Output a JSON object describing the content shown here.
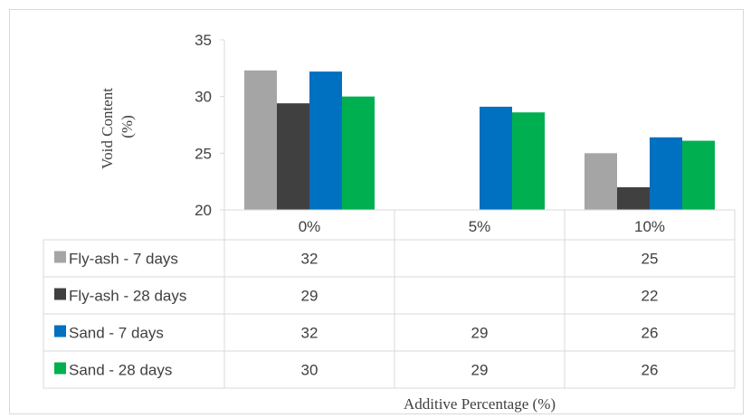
{
  "chart_data": {
    "type": "bar",
    "title": "",
    "xlabel": "Additive Percentage (%)",
    "ylabel": "Void Content (%)",
    "ylabel_lines": [
      "Void Content",
      "(%)"
    ],
    "ylim": [
      20,
      35
    ],
    "yticks": [
      20,
      25,
      30,
      35
    ],
    "ytick_labels": [
      "20",
      "25",
      "30",
      "35"
    ],
    "grid": false,
    "legend": "data-table-left",
    "categories": [
      "0%",
      "5%",
      "10%"
    ],
    "series": [
      {
        "name": "Fly-ash - 7 days",
        "color": "#a5a5a5",
        "values": [
          32.3,
          null,
          25.0
        ],
        "table": [
          "32",
          "",
          "25"
        ]
      },
      {
        "name": "Fly-ash - 28 days",
        "color": "#404040",
        "values": [
          29.4,
          null,
          22.0
        ],
        "table": [
          "29",
          "",
          "22"
        ]
      },
      {
        "name": "Sand - 7 days",
        "color": "#0070c0",
        "values": [
          32.2,
          29.1,
          26.4
        ],
        "table": [
          "32",
          "29",
          "26"
        ]
      },
      {
        "name": "Sand - 28 days",
        "color": "#00b050",
        "values": [
          30.0,
          28.6,
          26.1
        ],
        "table": [
          "30",
          "29",
          "26"
        ]
      }
    ]
  }
}
